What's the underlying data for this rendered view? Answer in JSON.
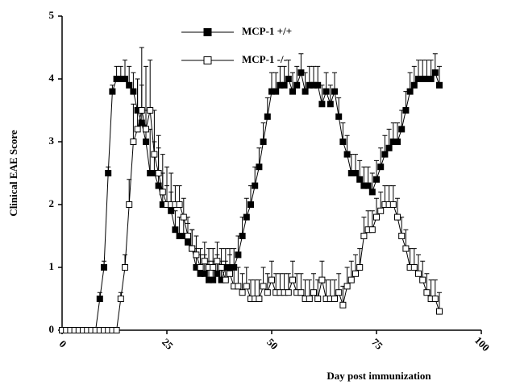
{
  "chart_data": {
    "type": "line",
    "ylabel": "Clinical EAE Score",
    "xlabel": "Day post immunization",
    "x": [
      0,
      1,
      2,
      3,
      4,
      5,
      6,
      7,
      8,
      9,
      10,
      11,
      12,
      13,
      14,
      15,
      16,
      17,
      18,
      19,
      20,
      21,
      22,
      23,
      24,
      25,
      26,
      27,
      28,
      29,
      30,
      31,
      32,
      33,
      34,
      35,
      36,
      37,
      38,
      39,
      40,
      41,
      42,
      43,
      44,
      45,
      46,
      47,
      48,
      49,
      50,
      51,
      52,
      53,
      54,
      55,
      56,
      57,
      58,
      59,
      60,
      61,
      62,
      63,
      64,
      65,
      66,
      67,
      68,
      69,
      70,
      71,
      72,
      73,
      74,
      75,
      76,
      77,
      78,
      79,
      80,
      81,
      82,
      83,
      84,
      85,
      86,
      87,
      88,
      89,
      90
    ],
    "series": [
      {
        "name": "MCP-1 +/+",
        "color": "#000000",
        "marker": "filled",
        "values": [
          0,
          0,
          0,
          0,
          0,
          0,
          0,
          0,
          0,
          0.5,
          1.0,
          2.5,
          3.8,
          4.0,
          4.0,
          4.0,
          3.9,
          3.8,
          3.5,
          3.3,
          3.0,
          2.5,
          2.5,
          2.3,
          2.0,
          2.0,
          1.9,
          1.6,
          1.5,
          1.5,
          1.4,
          1.3,
          1.0,
          0.9,
          0.9,
          0.8,
          0.8,
          0.9,
          0.8,
          1.0,
          1.0,
          1.0,
          1.2,
          1.5,
          1.8,
          2.0,
          2.3,
          2.6,
          3.0,
          3.4,
          3.8,
          3.8,
          3.9,
          3.9,
          4.0,
          3.8,
          3.9,
          4.1,
          3.8,
          3.9,
          3.9,
          3.9,
          3.6,
          3.8,
          3.6,
          3.8,
          3.4,
          3.0,
          2.8,
          2.5,
          2.5,
          2.4,
          2.3,
          2.3,
          2.2,
          2.4,
          2.6,
          2.8,
          2.9,
          3.0,
          3.0,
          3.2,
          3.5,
          3.8,
          3.9,
          4.0,
          4.0,
          4.0,
          4.0,
          4.1,
          3.9
        ],
        "errors": [
          0,
          0,
          0,
          0,
          0,
          0,
          0,
          0,
          0,
          0.1,
          0.1,
          0.1,
          0.1,
          0.2,
          0.2,
          0.3,
          0.3,
          0.3,
          0.5,
          0.6,
          0.5,
          0.7,
          0.5,
          0.6,
          0.5,
          0.3,
          0.3,
          0.3,
          0.3,
          0.3,
          0.3,
          0.3,
          0.3,
          0.3,
          0.3,
          0.3,
          0.3,
          0.3,
          0.3,
          0.3,
          0.3,
          0.3,
          0.3,
          0.3,
          0.3,
          0.3,
          0.3,
          0.3,
          0.3,
          0.3,
          0.3,
          0.3,
          0.3,
          0.3,
          0.3,
          0.3,
          0.3,
          0.3,
          0.3,
          0.3,
          0.3,
          0.3,
          0.3,
          0.3,
          0.3,
          0.3,
          0.3,
          0.3,
          0.3,
          0.3,
          0.3,
          0.3,
          0.3,
          0.3,
          0.3,
          0.3,
          0.3,
          0.3,
          0.3,
          0.3,
          0.3,
          0.3,
          0.3,
          0.3,
          0.3,
          0.3,
          0.3,
          0.3,
          0.3,
          0.3,
          0.3
        ]
      },
      {
        "name": "MCP-1 -/-",
        "color": "#000000",
        "marker": "open",
        "values": [
          0,
          0,
          0,
          0,
          0,
          0,
          0,
          0,
          0,
          0,
          0,
          0,
          0,
          0,
          0.5,
          1.0,
          2.0,
          3.0,
          3.2,
          3.5,
          3.2,
          3.5,
          2.8,
          2.5,
          2.2,
          2.0,
          2.0,
          2.0,
          2.0,
          1.8,
          1.5,
          1.3,
          1.2,
          1.0,
          1.1,
          1.0,
          1.0,
          1.1,
          1.0,
          0.8,
          0.9,
          0.7,
          0.7,
          0.6,
          0.7,
          0.5,
          0.5,
          0.5,
          0.7,
          0.6,
          0.8,
          0.6,
          0.6,
          0.6,
          0.6,
          0.8,
          0.6,
          0.6,
          0.5,
          0.5,
          0.6,
          0.5,
          0.8,
          0.5,
          0.5,
          0.5,
          0.6,
          0.4,
          0.7,
          0.8,
          0.9,
          1.0,
          1.5,
          1.6,
          1.6,
          1.8,
          1.9,
          2.0,
          2.0,
          2.0,
          1.8,
          1.5,
          1.3,
          1.0,
          1.0,
          0.9,
          0.8,
          0.6,
          0.5,
          0.5,
          0.3
        ],
        "errors": [
          0,
          0,
          0,
          0,
          0,
          0,
          0,
          0,
          0,
          0,
          0,
          0,
          0,
          0,
          0.1,
          0.2,
          0.4,
          0.6,
          0.8,
          1.0,
          1.0,
          0.8,
          0.7,
          0.6,
          0.6,
          0.6,
          0.5,
          0.3,
          0.3,
          0.3,
          0.3,
          0.3,
          0.3,
          0.3,
          0.3,
          0.3,
          0.3,
          0.3,
          0.3,
          0.3,
          0.3,
          0.3,
          0.3,
          0.3,
          0.3,
          0.3,
          0.3,
          0.3,
          0.3,
          0.3,
          0.3,
          0.3,
          0.3,
          0.3,
          0.3,
          0.3,
          0.3,
          0.3,
          0.3,
          0.3,
          0.3,
          0.3,
          0.3,
          0.3,
          0.3,
          0.3,
          0.3,
          0.3,
          0.3,
          0.3,
          0.3,
          0.3,
          0.3,
          0.3,
          0.3,
          0.3,
          0.3,
          0.3,
          0.3,
          0.3,
          0.3,
          0.3,
          0.3,
          0.3,
          0.3,
          0.3,
          0.3,
          0.3,
          0.3,
          0.3,
          0.3
        ]
      }
    ],
    "xlim": [
      0,
      100
    ],
    "xticks": [
      0,
      25,
      50,
      75,
      100
    ],
    "ylim": [
      0,
      5
    ],
    "yticks": [
      0,
      1,
      2,
      3,
      4,
      5
    ]
  }
}
